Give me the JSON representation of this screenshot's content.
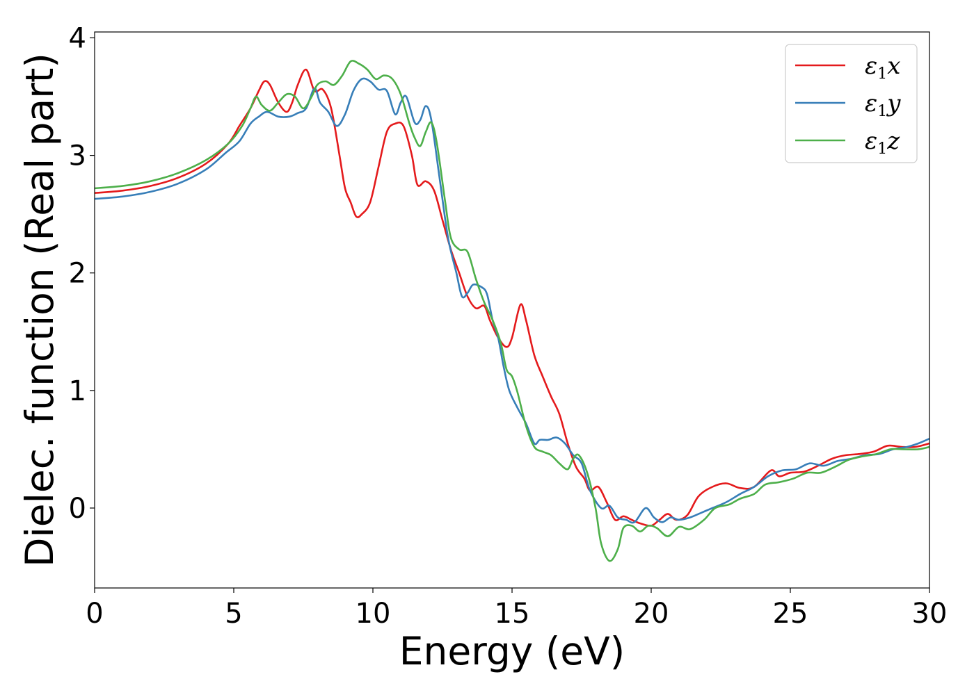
{
  "chart_data": {
    "type": "line",
    "title": "",
    "xlabel": "Energy (eV)",
    "ylabel": "Dielec. function (Real part)",
    "xlim": [
      0,
      30
    ],
    "ylim": [
      -0.68,
      4.05
    ],
    "xticks": [
      0,
      5,
      10,
      15,
      20,
      25,
      30
    ],
    "xtick_labels": [
      "0",
      "5",
      "10",
      "15",
      "20",
      "25",
      "30"
    ],
    "yticks": [
      0,
      1,
      2,
      3,
      4
    ],
    "ytick_labels": [
      "0",
      "1",
      "2",
      "3",
      "4"
    ],
    "grid": false,
    "legend_position": "top-right",
    "series": [
      {
        "name": "ε₁x",
        "legend_base": "ε",
        "legend_sub": "1",
        "legend_suffix": "x",
        "color": "#e41a1c",
        "points": [
          [
            0,
            2.68
          ],
          [
            1,
            2.7
          ],
          [
            2,
            2.74
          ],
          [
            3,
            2.81
          ],
          [
            4,
            2.93
          ],
          [
            4.8,
            3.1
          ],
          [
            5.2,
            3.25
          ],
          [
            5.6,
            3.4
          ],
          [
            5.9,
            3.55
          ],
          [
            6.1,
            3.63
          ],
          [
            6.3,
            3.6
          ],
          [
            6.6,
            3.45
          ],
          [
            6.9,
            3.37
          ],
          [
            7.1,
            3.45
          ],
          [
            7.3,
            3.6
          ],
          [
            7.6,
            3.73
          ],
          [
            7.9,
            3.55
          ],
          [
            8.2,
            3.56
          ],
          [
            8.5,
            3.4
          ],
          [
            8.8,
            3.0
          ],
          [
            9.0,
            2.72
          ],
          [
            9.2,
            2.6
          ],
          [
            9.4,
            2.48
          ],
          [
            9.6,
            2.5
          ],
          [
            9.9,
            2.6
          ],
          [
            10.2,
            2.9
          ],
          [
            10.5,
            3.2
          ],
          [
            10.8,
            3.27
          ],
          [
            11.1,
            3.25
          ],
          [
            11.4,
            3.0
          ],
          [
            11.6,
            2.75
          ],
          [
            11.9,
            2.78
          ],
          [
            12.2,
            2.7
          ],
          [
            12.5,
            2.45
          ],
          [
            12.8,
            2.2
          ],
          [
            13.1,
            2.0
          ],
          [
            13.4,
            1.8
          ],
          [
            13.7,
            1.7
          ],
          [
            14.0,
            1.72
          ],
          [
            14.2,
            1.6
          ],
          [
            14.5,
            1.45
          ],
          [
            14.8,
            1.37
          ],
          [
            15.0,
            1.45
          ],
          [
            15.3,
            1.73
          ],
          [
            15.5,
            1.6
          ],
          [
            15.8,
            1.3
          ],
          [
            16.1,
            1.12
          ],
          [
            16.4,
            0.95
          ],
          [
            16.7,
            0.8
          ],
          [
            17.0,
            0.55
          ],
          [
            17.3,
            0.35
          ],
          [
            17.6,
            0.25
          ],
          [
            17.8,
            0.15
          ],
          [
            18.1,
            0.18
          ],
          [
            18.4,
            0.05
          ],
          [
            18.7,
            -0.1
          ],
          [
            19.0,
            -0.07
          ],
          [
            19.3,
            -0.1
          ],
          [
            19.6,
            -0.13
          ],
          [
            20.0,
            -0.15
          ],
          [
            20.3,
            -0.1
          ],
          [
            20.6,
            -0.05
          ],
          [
            20.9,
            -0.1
          ],
          [
            21.3,
            -0.06
          ],
          [
            21.7,
            0.1
          ],
          [
            22.2,
            0.18
          ],
          [
            22.7,
            0.21
          ],
          [
            23.2,
            0.17
          ],
          [
            23.7,
            0.18
          ],
          [
            24.3,
            0.32
          ],
          [
            24.6,
            0.27
          ],
          [
            25.0,
            0.3
          ],
          [
            25.5,
            0.31
          ],
          [
            26.0,
            0.36
          ],
          [
            26.5,
            0.42
          ],
          [
            27.0,
            0.45
          ],
          [
            27.5,
            0.46
          ],
          [
            28.0,
            0.48
          ],
          [
            28.5,
            0.53
          ],
          [
            29.0,
            0.52
          ],
          [
            29.5,
            0.52
          ],
          [
            30,
            0.55
          ]
        ]
      },
      {
        "name": "ε₁y",
        "legend_base": "ε",
        "legend_sub": "1",
        "legend_suffix": "y",
        "color": "#377eb8",
        "points": [
          [
            0,
            2.63
          ],
          [
            1,
            2.65
          ],
          [
            2,
            2.69
          ],
          [
            3,
            2.76
          ],
          [
            4,
            2.88
          ],
          [
            4.7,
            3.02
          ],
          [
            5.2,
            3.12
          ],
          [
            5.6,
            3.27
          ],
          [
            5.9,
            3.33
          ],
          [
            6.2,
            3.37
          ],
          [
            6.6,
            3.33
          ],
          [
            7.0,
            3.33
          ],
          [
            7.3,
            3.36
          ],
          [
            7.6,
            3.4
          ],
          [
            7.9,
            3.57
          ],
          [
            8.1,
            3.45
          ],
          [
            8.4,
            3.37
          ],
          [
            8.7,
            3.25
          ],
          [
            9.0,
            3.35
          ],
          [
            9.3,
            3.55
          ],
          [
            9.6,
            3.65
          ],
          [
            9.9,
            3.63
          ],
          [
            10.2,
            3.56
          ],
          [
            10.5,
            3.55
          ],
          [
            10.8,
            3.35
          ],
          [
            11.0,
            3.45
          ],
          [
            11.2,
            3.5
          ],
          [
            11.5,
            3.28
          ],
          [
            11.7,
            3.3
          ],
          [
            11.9,
            3.42
          ],
          [
            12.1,
            3.3
          ],
          [
            12.4,
            2.8
          ],
          [
            12.7,
            2.3
          ],
          [
            13.0,
            2.0
          ],
          [
            13.2,
            1.8
          ],
          [
            13.4,
            1.83
          ],
          [
            13.6,
            1.9
          ],
          [
            13.9,
            1.88
          ],
          [
            14.1,
            1.82
          ],
          [
            14.3,
            1.6
          ],
          [
            14.5,
            1.45
          ],
          [
            14.7,
            1.2
          ],
          [
            14.9,
            1.0
          ],
          [
            15.2,
            0.85
          ],
          [
            15.5,
            0.72
          ],
          [
            15.8,
            0.55
          ],
          [
            16.0,
            0.58
          ],
          [
            16.3,
            0.58
          ],
          [
            16.6,
            0.6
          ],
          [
            16.9,
            0.55
          ],
          [
            17.2,
            0.45
          ],
          [
            17.5,
            0.38
          ],
          [
            17.8,
            0.15
          ],
          [
            18.2,
            0.0
          ],
          [
            18.5,
            0.02
          ],
          [
            18.8,
            -0.08
          ],
          [
            19.1,
            -0.1
          ],
          [
            19.4,
            -0.12
          ],
          [
            19.8,
            0.0
          ],
          [
            20.1,
            -0.08
          ],
          [
            20.4,
            -0.12
          ],
          [
            20.7,
            -0.08
          ],
          [
            21.0,
            -0.1
          ],
          [
            21.4,
            -0.08
          ],
          [
            21.8,
            -0.04
          ],
          [
            22.2,
            0.0
          ],
          [
            22.7,
            0.05
          ],
          [
            23.2,
            0.12
          ],
          [
            23.7,
            0.18
          ],
          [
            24.2,
            0.27
          ],
          [
            24.7,
            0.32
          ],
          [
            25.2,
            0.33
          ],
          [
            25.7,
            0.38
          ],
          [
            26.2,
            0.36
          ],
          [
            26.7,
            0.4
          ],
          [
            27.2,
            0.42
          ],
          [
            27.7,
            0.45
          ],
          [
            28.2,
            0.46
          ],
          [
            28.7,
            0.5
          ],
          [
            29.2,
            0.52
          ],
          [
            29.6,
            0.55
          ],
          [
            30,
            0.59
          ]
        ]
      },
      {
        "name": "ε₁z",
        "legend_base": "ε",
        "legend_sub": "1",
        "legend_suffix": "z",
        "color": "#4daf4a",
        "points": [
          [
            0,
            2.72
          ],
          [
            1,
            2.74
          ],
          [
            2,
            2.78
          ],
          [
            3,
            2.85
          ],
          [
            4,
            2.96
          ],
          [
            4.8,
            3.1
          ],
          [
            5.3,
            3.25
          ],
          [
            5.6,
            3.4
          ],
          [
            5.8,
            3.5
          ],
          [
            6.0,
            3.43
          ],
          [
            6.3,
            3.38
          ],
          [
            6.6,
            3.45
          ],
          [
            6.9,
            3.52
          ],
          [
            7.2,
            3.5
          ],
          [
            7.5,
            3.4
          ],
          [
            7.8,
            3.5
          ],
          [
            8.0,
            3.6
          ],
          [
            8.3,
            3.63
          ],
          [
            8.6,
            3.6
          ],
          [
            8.9,
            3.68
          ],
          [
            9.2,
            3.8
          ],
          [
            9.5,
            3.78
          ],
          [
            9.8,
            3.73
          ],
          [
            10.1,
            3.65
          ],
          [
            10.4,
            3.68
          ],
          [
            10.7,
            3.65
          ],
          [
            11.0,
            3.52
          ],
          [
            11.3,
            3.28
          ],
          [
            11.5,
            3.15
          ],
          [
            11.7,
            3.08
          ],
          [
            11.9,
            3.2
          ],
          [
            12.1,
            3.28
          ],
          [
            12.3,
            3.1
          ],
          [
            12.6,
            2.6
          ],
          [
            12.8,
            2.3
          ],
          [
            13.1,
            2.2
          ],
          [
            13.4,
            2.18
          ],
          [
            13.7,
            1.95
          ],
          [
            14.0,
            1.75
          ],
          [
            14.3,
            1.6
          ],
          [
            14.6,
            1.4
          ],
          [
            14.8,
            1.18
          ],
          [
            15.0,
            1.12
          ],
          [
            15.2,
            0.98
          ],
          [
            15.5,
            0.7
          ],
          [
            15.8,
            0.52
          ],
          [
            16.1,
            0.48
          ],
          [
            16.4,
            0.45
          ],
          [
            16.7,
            0.38
          ],
          [
            17.0,
            0.33
          ],
          [
            17.2,
            0.42
          ],
          [
            17.4,
            0.45
          ],
          [
            17.7,
            0.3
          ],
          [
            18.0,
            0.0
          ],
          [
            18.2,
            -0.3
          ],
          [
            18.5,
            -0.45
          ],
          [
            18.8,
            -0.35
          ],
          [
            19.0,
            -0.17
          ],
          [
            19.3,
            -0.15
          ],
          [
            19.6,
            -0.2
          ],
          [
            19.9,
            -0.15
          ],
          [
            20.2,
            -0.17
          ],
          [
            20.6,
            -0.24
          ],
          [
            21.0,
            -0.16
          ],
          [
            21.4,
            -0.18
          ],
          [
            21.9,
            -0.1
          ],
          [
            22.3,
            0.0
          ],
          [
            22.8,
            0.03
          ],
          [
            23.2,
            0.08
          ],
          [
            23.7,
            0.12
          ],
          [
            24.1,
            0.2
          ],
          [
            24.6,
            0.22
          ],
          [
            25.1,
            0.25
          ],
          [
            25.6,
            0.3
          ],
          [
            26.1,
            0.3
          ],
          [
            26.6,
            0.35
          ],
          [
            27.1,
            0.41
          ],
          [
            27.6,
            0.44
          ],
          [
            28.1,
            0.46
          ],
          [
            28.6,
            0.5
          ],
          [
            29.1,
            0.5
          ],
          [
            29.6,
            0.5
          ],
          [
            30,
            0.52
          ]
        ]
      }
    ]
  }
}
